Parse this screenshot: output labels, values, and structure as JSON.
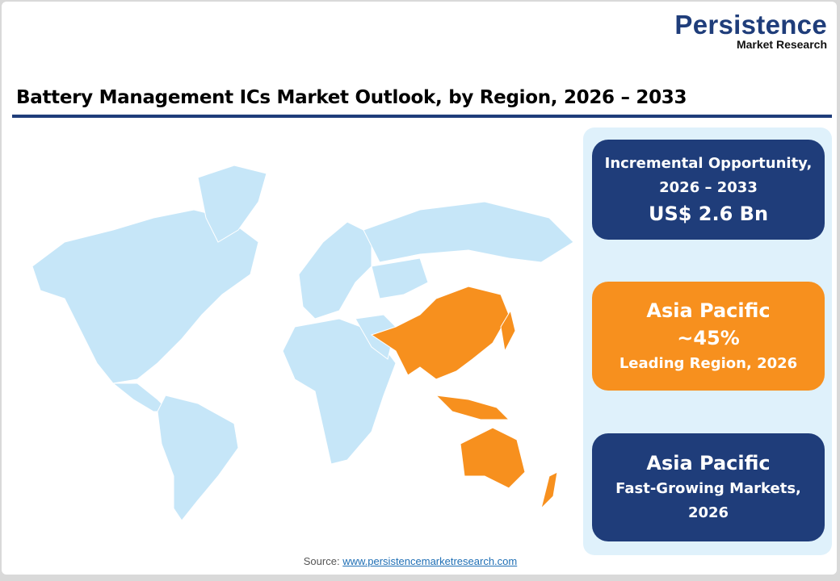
{
  "logo": {
    "main": "Persistence",
    "sub": "Market Research"
  },
  "title": "Battery Management ICs Market Outlook, by Region, 2026 – 2033",
  "colors": {
    "navy": "#1f3d7a",
    "orange": "#f7901e",
    "map_base": "#c6e6f8",
    "map_highlight": "#f7901e",
    "panel": "#dff1fb"
  },
  "map": {
    "highlighted_region": "Asia Pacific"
  },
  "cards": [
    {
      "line1": "Incremental Opportunity,",
      "line2": "2026 – 2033",
      "value": "US$ 2.6 Bn"
    },
    {
      "region": "Asia Pacific",
      "value": "~45%",
      "caption": "Leading Region, 2026"
    },
    {
      "region": "Asia Pacific",
      "caption1": "Fast-Growing Markets,",
      "caption2": "2026"
    }
  ],
  "source": {
    "label": "Source:",
    "link": "www.persistencemarketresearch.com"
  }
}
